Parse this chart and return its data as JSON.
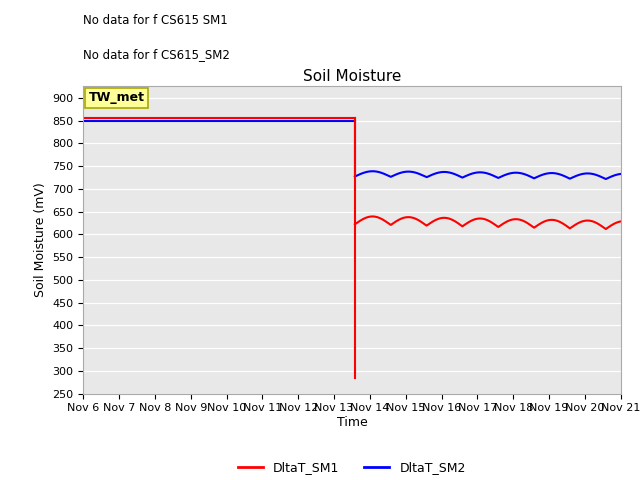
{
  "title": "Soil Moisture",
  "ylabel": "Soil Moisture (mV)",
  "xlabel": "Time",
  "ylim": [
    250,
    925
  ],
  "yticks": [
    250,
    300,
    350,
    400,
    450,
    500,
    550,
    600,
    650,
    700,
    750,
    800,
    850,
    900
  ],
  "background_color": "#e8e8e8",
  "no_data_text_1": "No data for f CS615 SM1",
  "no_data_text_2": "No data for f CS615_SM2",
  "legend_box_label": "TW_met",
  "legend_box_color": "#ffff99",
  "legend_box_border": "#aaa800",
  "sm1_color": "red",
  "sm2_color": "blue",
  "sm1_label": "DltaT_SM1",
  "sm2_label": "DltaT_SM2",
  "x_start": 6,
  "x_end": 21,
  "x_drop": 13.58,
  "sm1_before_level": 855,
  "sm1_after_base": 622,
  "sm1_after_amp": 18,
  "sm1_drop_low": 285,
  "sm2_before_level": 848,
  "sm2_after_base": 727,
  "sm2_after_amp": 12,
  "xtick_labels": [
    "Nov 6",
    "Nov 7",
    "Nov 8",
    "Nov 9",
    "Nov 10",
    "Nov 11",
    "Nov 12",
    "Nov 13",
    "Nov 14",
    "Nov 15",
    "Nov 16",
    "Nov 17",
    "Nov 18",
    "Nov 19",
    "Nov 20",
    "Nov 21"
  ],
  "xtick_positions": [
    6,
    7,
    8,
    9,
    10,
    11,
    12,
    13,
    14,
    15,
    16,
    17,
    18,
    19,
    20,
    21
  ],
  "title_fontsize": 11,
  "axis_label_fontsize": 9,
  "tick_fontsize": 8
}
